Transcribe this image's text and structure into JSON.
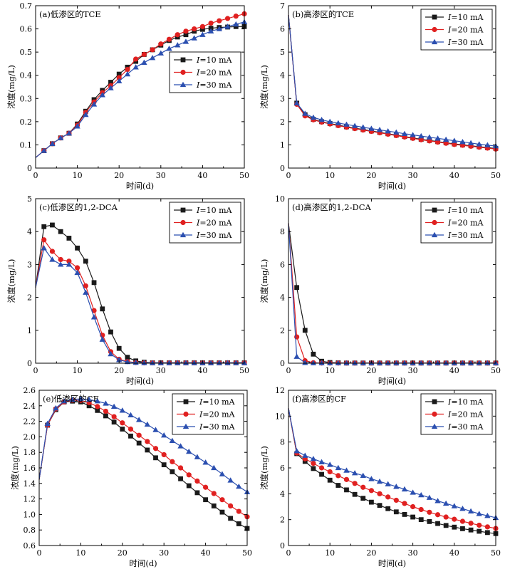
{
  "colors": {
    "I10": "#1a1a1a",
    "I20": "#e02020",
    "I30": "#2b4fb0"
  },
  "chart_data": [
    {
      "type": "line",
      "title": "(a)低渗区的TCE",
      "xlabel": "时间(d)",
      "ylabel": "浓度(mg/L)",
      "xlim": [
        0,
        50
      ],
      "ylim": [
        0,
        0.7
      ],
      "xticks": [
        "0",
        "10",
        "20",
        "30",
        "40",
        "50"
      ],
      "yticks": [
        "0",
        "0.1",
        "0.2",
        "0.3",
        "0.4",
        "0.5",
        "0.6",
        "0.7"
      ],
      "legend_pos": "mid-right",
      "x": [
        0,
        2,
        4,
        6,
        8,
        10,
        12,
        14,
        16,
        18,
        20,
        22,
        24,
        26,
        28,
        30,
        32,
        34,
        36,
        38,
        40,
        42,
        44,
        46,
        48,
        50
      ],
      "series": [
        {
          "name": "I=10 mA",
          "label_i": "I",
          "label_rest": "=10 mA",
          "color": "#1a1a1a",
          "marker": "square",
          "values": [
            0.045,
            0.075,
            0.105,
            0.13,
            0.15,
            0.19,
            0.245,
            0.295,
            0.335,
            0.37,
            0.405,
            0.435,
            0.46,
            0.49,
            0.51,
            0.53,
            0.55,
            0.565,
            0.575,
            0.59,
            0.598,
            0.603,
            0.606,
            0.608,
            0.61,
            0.61
          ]
        },
        {
          "name": "I=20 mA",
          "label_i": "I",
          "label_rest": "=20 mA",
          "color": "#e02020",
          "marker": "circle",
          "values": [
            0.045,
            0.075,
            0.105,
            0.13,
            0.15,
            0.185,
            0.24,
            0.285,
            0.325,
            0.355,
            0.39,
            0.425,
            0.47,
            0.49,
            0.51,
            0.535,
            0.555,
            0.575,
            0.59,
            0.6,
            0.61,
            0.625,
            0.635,
            0.645,
            0.655,
            0.665
          ]
        },
        {
          "name": "I=30 mA",
          "label_i": "I",
          "label_rest": "=30 mA",
          "color": "#2b4fb0",
          "marker": "triangle",
          "values": [
            0.045,
            0.075,
            0.105,
            0.13,
            0.15,
            0.18,
            0.23,
            0.275,
            0.315,
            0.345,
            0.375,
            0.405,
            0.435,
            0.455,
            0.475,
            0.495,
            0.515,
            0.53,
            0.545,
            0.56,
            0.575,
            0.59,
            0.6,
            0.61,
            0.62,
            0.63
          ]
        }
      ]
    },
    {
      "type": "line",
      "title": "(b)高渗区的TCE",
      "xlabel": "时间(d)",
      "ylabel": "浓度(mg/L)",
      "xlim": [
        0,
        50
      ],
      "ylim": [
        0,
        7
      ],
      "xticks": [
        "0",
        "10",
        "20",
        "30",
        "40",
        "50"
      ],
      "yticks": [
        "0",
        "1",
        "2",
        "3",
        "4",
        "5",
        "6",
        "7"
      ],
      "legend_pos": "top-right",
      "x": [
        0,
        2,
        4,
        6,
        8,
        10,
        12,
        14,
        16,
        18,
        20,
        22,
        24,
        26,
        28,
        30,
        32,
        34,
        36,
        38,
        40,
        42,
        44,
        46,
        48,
        50
      ],
      "series": [
        {
          "name": "I=10 mA",
          "label_i": "I",
          "label_rest": "=10 mA",
          "color": "#1a1a1a",
          "marker": "square",
          "values": [
            6.6,
            2.8,
            2.3,
            2.1,
            2.0,
            1.92,
            1.85,
            1.78,
            1.72,
            1.66,
            1.6,
            1.54,
            1.48,
            1.42,
            1.36,
            1.3,
            1.24,
            1.19,
            1.14,
            1.09,
            1.04,
            1.0,
            0.96,
            0.92,
            0.88,
            0.85
          ]
        },
        {
          "name": "I=20 mA",
          "label_i": "I",
          "label_rest": "=20 mA",
          "color": "#e02020",
          "marker": "circle",
          "values": [
            6.6,
            2.75,
            2.25,
            2.08,
            1.98,
            1.9,
            1.83,
            1.76,
            1.7,
            1.64,
            1.58,
            1.52,
            1.46,
            1.4,
            1.34,
            1.28,
            1.22,
            1.17,
            1.12,
            1.07,
            1.02,
            0.98,
            0.94,
            0.9,
            0.86,
            0.82
          ]
        },
        {
          "name": "I=30 mA",
          "label_i": "I",
          "label_rest": "=30 mA",
          "color": "#2b4fb0",
          "marker": "triangle",
          "values": [
            6.6,
            2.8,
            2.35,
            2.18,
            2.08,
            2.0,
            1.94,
            1.88,
            1.82,
            1.76,
            1.7,
            1.65,
            1.59,
            1.54,
            1.48,
            1.43,
            1.38,
            1.33,
            1.28,
            1.23,
            1.18,
            1.13,
            1.08,
            1.03,
            0.99,
            0.95
          ]
        }
      ]
    },
    {
      "type": "line",
      "title": "(c)低渗区的1,2-DCA",
      "xlabel": "时间(d)",
      "ylabel": "浓度(mg/L)",
      "xlim": [
        0,
        50
      ],
      "ylim": [
        0,
        5
      ],
      "xticks": [
        "0",
        "10",
        "20",
        "30",
        "40",
        "50"
      ],
      "yticks": [
        "0",
        "1",
        "2",
        "3",
        "4",
        "5"
      ],
      "legend_pos": "top-right",
      "x": [
        0,
        2,
        4,
        6,
        8,
        10,
        12,
        14,
        16,
        18,
        20,
        22,
        24,
        26,
        28,
        30,
        32,
        34,
        36,
        38,
        40,
        42,
        44,
        46,
        48,
        50
      ],
      "series": [
        {
          "name": "I=10 mA",
          "label_i": "I",
          "label_rest": "=10 mA",
          "color": "#1a1a1a",
          "marker": "square",
          "values": [
            2.3,
            4.15,
            4.2,
            4.0,
            3.8,
            3.5,
            3.1,
            2.45,
            1.65,
            0.95,
            0.45,
            0.18,
            0.07,
            0.03,
            0.01,
            0.01,
            0.01,
            0.01,
            0.01,
            0.01,
            0.01,
            0.01,
            0.01,
            0.01,
            0.01,
            0.01
          ]
        },
        {
          "name": "I=20 mA",
          "label_i": "I",
          "label_rest": "=20 mA",
          "color": "#e02020",
          "marker": "circle",
          "values": [
            2.3,
            3.75,
            3.4,
            3.15,
            3.1,
            2.9,
            2.35,
            1.6,
            0.85,
            0.35,
            0.12,
            0.05,
            0.02,
            0.01,
            0.01,
            0.01,
            0.01,
            0.01,
            0.01,
            0.01,
            0.01,
            0.01,
            0.01,
            0.01,
            0.01,
            0.01
          ]
        },
        {
          "name": "I=30 mA",
          "label_i": "I",
          "label_rest": "=30 mA",
          "color": "#2b4fb0",
          "marker": "triangle",
          "values": [
            2.3,
            3.5,
            3.15,
            3.0,
            3.0,
            2.75,
            2.15,
            1.4,
            0.72,
            0.28,
            0.1,
            0.04,
            0.02,
            0.01,
            0.01,
            0.01,
            0.01,
            0.01,
            0.01,
            0.01,
            0.01,
            0.01,
            0.01,
            0.01,
            0.01,
            0.01
          ]
        }
      ]
    },
    {
      "type": "line",
      "title": "(d)高渗区的1,2-DCA",
      "xlabel": "时间(d)",
      "ylabel": "浓度(mg/L)",
      "xlim": [
        0,
        50
      ],
      "ylim": [
        0,
        10
      ],
      "xticks": [
        "0",
        "10",
        "20",
        "30",
        "40",
        "50"
      ],
      "yticks": [
        "0",
        "2",
        "4",
        "6",
        "8",
        "10"
      ],
      "legend_pos": "top-right",
      "x": [
        0,
        2,
        4,
        6,
        8,
        10,
        12,
        14,
        16,
        18,
        20,
        22,
        24,
        26,
        28,
        30,
        32,
        34,
        36,
        38,
        40,
        42,
        44,
        46,
        48,
        50
      ],
      "series": [
        {
          "name": "I=10 mA",
          "label_i": "I",
          "label_rest": "=10 mA",
          "color": "#1a1a1a",
          "marker": "square",
          "values": [
            8.5,
            4.6,
            2.0,
            0.55,
            0.12,
            0.04,
            0.02,
            0.01,
            0.01,
            0.01,
            0.01,
            0.01,
            0.01,
            0.01,
            0.01,
            0.01,
            0.01,
            0.01,
            0.01,
            0.01,
            0.01,
            0.01,
            0.01,
            0.01,
            0.01,
            0.01
          ]
        },
        {
          "name": "I=20 mA",
          "label_i": "I",
          "label_rest": "=20 mA",
          "color": "#e02020",
          "marker": "circle",
          "values": [
            8.5,
            1.6,
            0.15,
            0.03,
            0.01,
            0.01,
            0.01,
            0.01,
            0.01,
            0.01,
            0.01,
            0.01,
            0.01,
            0.01,
            0.01,
            0.01,
            0.01,
            0.01,
            0.01,
            0.01,
            0.01,
            0.01,
            0.01,
            0.01,
            0.01,
            0.01
          ]
        },
        {
          "name": "I=30 mA",
          "label_i": "I",
          "label_rest": "=30 mA",
          "color": "#2b4fb0",
          "marker": "triangle",
          "values": [
            8.5,
            0.4,
            0.03,
            0.01,
            0.01,
            0.01,
            0.01,
            0.01,
            0.01,
            0.01,
            0.01,
            0.01,
            0.01,
            0.01,
            0.01,
            0.01,
            0.01,
            0.01,
            0.01,
            0.01,
            0.01,
            0.01,
            0.01,
            0.01,
            0.01,
            0.01
          ]
        }
      ]
    },
    {
      "type": "line",
      "title": "(e)低渗区的CF",
      "xlabel": "时间(d)",
      "ylabel": "浓度(mg/L)",
      "xlim": [
        0,
        50
      ],
      "ylim": [
        0.6,
        2.6
      ],
      "xticks": [
        "0",
        "10",
        "20",
        "30",
        "40",
        "50"
      ],
      "yticks": [
        "0.6",
        "0.8",
        "1.0",
        "1.2",
        "1.4",
        "1.6",
        "1.8",
        "2.0",
        "2.2",
        "2.4",
        "2.6"
      ],
      "legend_pos": "top-right",
      "x": [
        0,
        2,
        4,
        6,
        8,
        10,
        12,
        14,
        16,
        18,
        20,
        22,
        24,
        26,
        28,
        30,
        32,
        34,
        36,
        38,
        40,
        42,
        44,
        46,
        48,
        50
      ],
      "series": [
        {
          "name": "I=10 mA",
          "label_i": "I",
          "label_rest": "=10 mA",
          "color": "#1a1a1a",
          "marker": "square",
          "values": [
            1.45,
            2.15,
            2.35,
            2.45,
            2.46,
            2.45,
            2.4,
            2.34,
            2.27,
            2.19,
            2.1,
            2.01,
            1.92,
            1.83,
            1.73,
            1.64,
            1.55,
            1.46,
            1.37,
            1.28,
            1.19,
            1.11,
            1.03,
            0.95,
            0.88,
            0.82
          ]
        },
        {
          "name": "I=20 mA",
          "label_i": "I",
          "label_rest": "=20 mA",
          "color": "#e02020",
          "marker": "circle",
          "values": [
            1.45,
            2.15,
            2.36,
            2.45,
            2.47,
            2.47,
            2.44,
            2.39,
            2.33,
            2.26,
            2.18,
            2.1,
            2.02,
            1.94,
            1.85,
            1.77,
            1.68,
            1.6,
            1.51,
            1.43,
            1.35,
            1.27,
            1.19,
            1.11,
            1.04,
            0.97
          ]
        },
        {
          "name": "I=30 mA",
          "label_i": "I",
          "label_rest": "=30 mA",
          "color": "#2b4fb0",
          "marker": "triangle",
          "values": [
            1.45,
            2.17,
            2.37,
            2.46,
            2.48,
            2.49,
            2.48,
            2.46,
            2.43,
            2.39,
            2.34,
            2.28,
            2.22,
            2.16,
            2.09,
            2.02,
            1.95,
            1.88,
            1.81,
            1.74,
            1.67,
            1.6,
            1.52,
            1.44,
            1.36,
            1.29
          ]
        }
      ]
    },
    {
      "type": "line",
      "title": "(f)高渗区的CF",
      "xlabel": "时间(d)",
      "ylabel": "浓度(mg/L)",
      "xlim": [
        0,
        50
      ],
      "ylim": [
        0,
        12
      ],
      "xticks": [
        "0",
        "10",
        "20",
        "30",
        "40",
        "50"
      ],
      "yticks": [
        "0",
        "2",
        "4",
        "6",
        "8",
        "10",
        "12"
      ],
      "legend_pos": "top-right",
      "x": [
        0,
        2,
        4,
        6,
        8,
        10,
        12,
        14,
        16,
        18,
        20,
        22,
        24,
        26,
        28,
        30,
        32,
        34,
        36,
        38,
        40,
        42,
        44,
        46,
        48,
        50
      ],
      "series": [
        {
          "name": "I=10 mA",
          "label_i": "I",
          "label_rest": "=10 mA",
          "color": "#1a1a1a",
          "marker": "square",
          "values": [
            10.6,
            7.1,
            6.5,
            5.95,
            5.5,
            5.05,
            4.65,
            4.3,
            3.95,
            3.65,
            3.35,
            3.1,
            2.85,
            2.6,
            2.4,
            2.2,
            2.0,
            1.85,
            1.7,
            1.55,
            1.42,
            1.3,
            1.2,
            1.1,
            1.0,
            0.92
          ]
        },
        {
          "name": "I=20 mA",
          "label_i": "I",
          "label_rest": "=20 mA",
          "color": "#e02020",
          "marker": "circle",
          "values": [
            10.6,
            7.15,
            6.7,
            6.35,
            6.0,
            5.7,
            5.4,
            5.1,
            4.8,
            4.5,
            4.25,
            4.0,
            3.75,
            3.5,
            3.25,
            3.0,
            2.78,
            2.57,
            2.38,
            2.2,
            2.03,
            1.87,
            1.72,
            1.57,
            1.44,
            1.32
          ]
        },
        {
          "name": "I=30 mA",
          "label_i": "I",
          "label_rest": "=30 mA",
          "color": "#2b4fb0",
          "marker": "triangle",
          "values": [
            10.6,
            7.3,
            6.95,
            6.7,
            6.45,
            6.25,
            6.0,
            5.8,
            5.6,
            5.4,
            5.15,
            4.95,
            4.75,
            4.55,
            4.35,
            4.1,
            3.9,
            3.7,
            3.45,
            3.25,
            3.05,
            2.85,
            2.65,
            2.45,
            2.3,
            2.15
          ]
        }
      ]
    }
  ]
}
